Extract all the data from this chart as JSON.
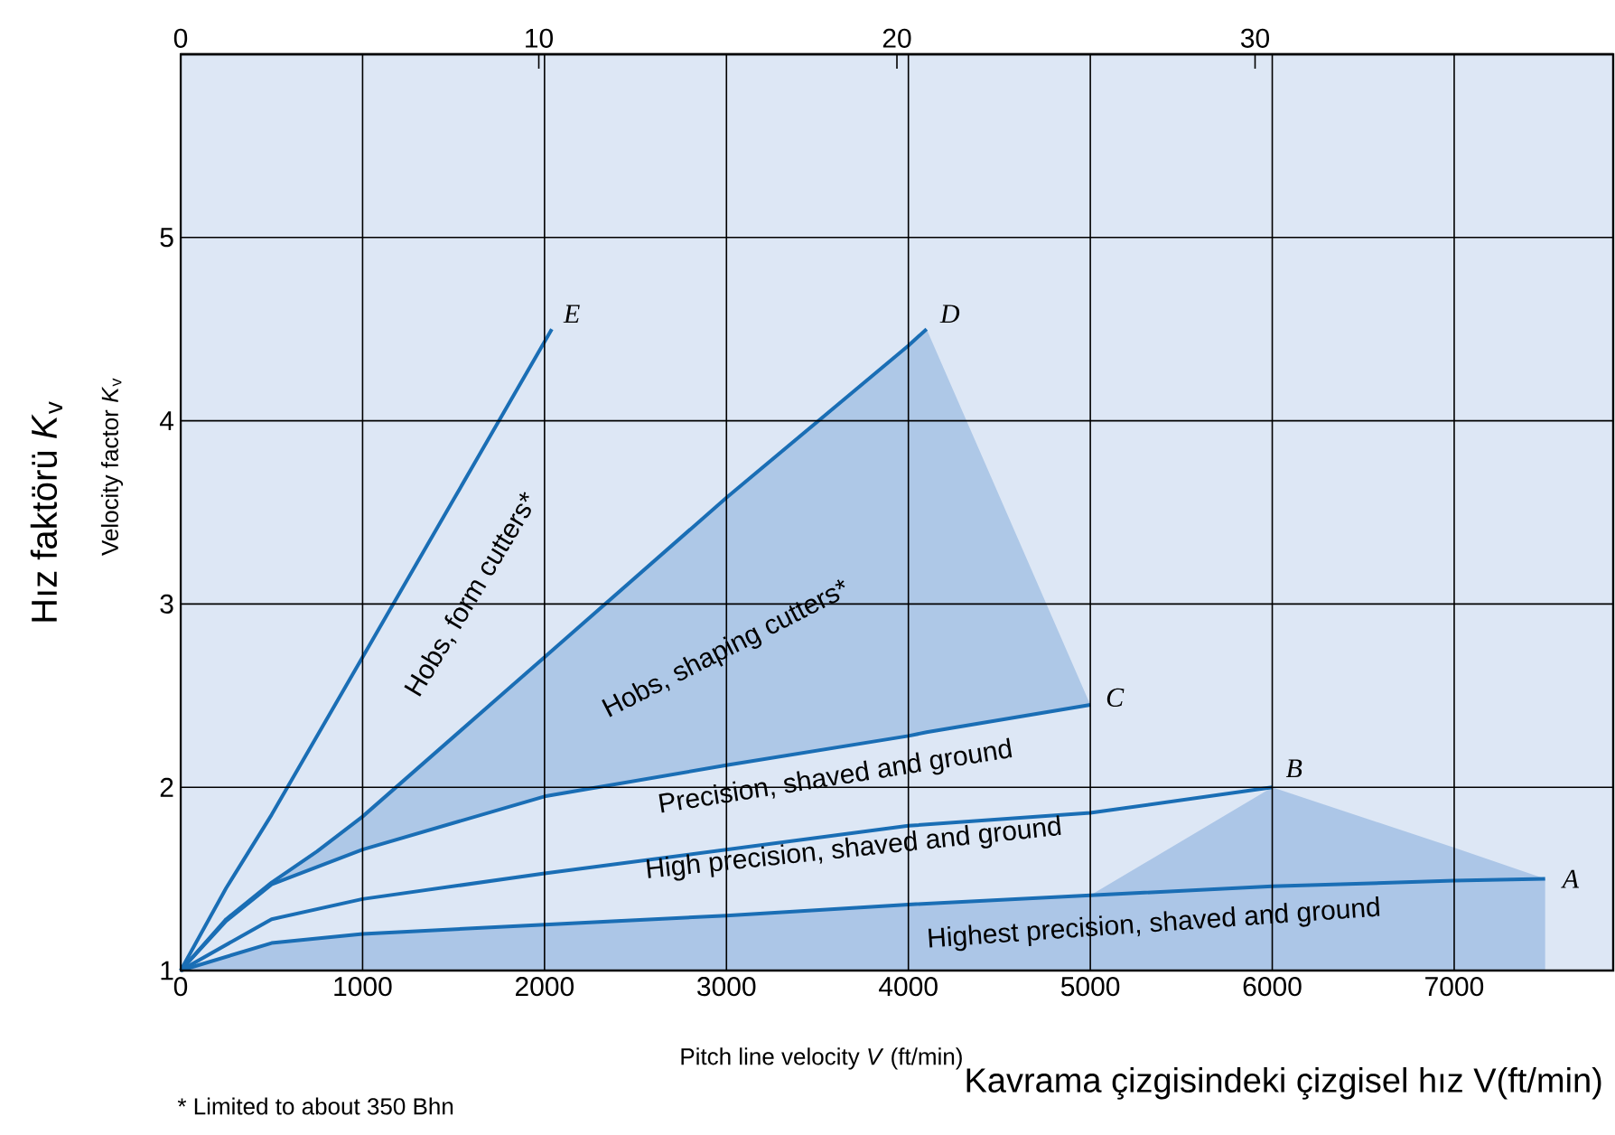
{
  "chart_data": {
    "type": "line",
    "xlabel": "Kavrama çizgisindeki çizgisel hız V(ft/min)",
    "ylabel": "Hız faktörü *K*$_{v}$",
    "xlim": [
      0,
      7874
    ],
    "xticks": [
      0,
      1000,
      2000,
      3000,
      4000,
      5000,
      6000,
      7000
    ],
    "ylim": [
      1,
      6
    ],
    "yticks": [
      1,
      2,
      3,
      4,
      5
    ],
    "x2lim": [
      0,
      40
    ],
    "x2ticks": [
      0,
      10,
      20,
      30
    ],
    "grid": true,
    "marker": "none",
    "line_style": "solid",
    "series": [
      {
        "color": "#1a6eb5",
        "x": [
          0,
          250,
          500,
          1000,
          1500,
          2040
        ],
        "values": [
          1,
          1.45,
          1.85,
          2.71,
          3.57,
          4.5
        ]
      },
      {
        "color": "#1a6eb5",
        "x": [
          0,
          250,
          500,
          750,
          1000,
          2000,
          3000,
          4000,
          4100
        ],
        "values": [
          1,
          1.28,
          1.48,
          1.65,
          1.84,
          2.71,
          3.58,
          4.41,
          4.5
        ]
      },
      {
        "color": "#1a6eb5",
        "x": [
          0,
          250,
          500,
          1000,
          2000,
          3000,
          4000,
          4100,
          5000
        ],
        "values": [
          1,
          1.27,
          1.47,
          1.66,
          1.95,
          2.12,
          2.28,
          2.3,
          2.45
        ],
        "lower": [
          1,
          1.27,
          1.47,
          1.66,
          1.95,
          2.12,
          2.28,
          2.3,
          2.45
        ],
        "upper": [
          1,
          1.28,
          1.48,
          1.84,
          2.71,
          3.58,
          4.41,
          4.5,
          2.45
        ]
      },
      {
        "color": "#1a6eb5",
        "x": [
          0,
          500,
          1000,
          2000,
          3000,
          4000,
          5000,
          6000
        ],
        "values": [
          1,
          1.28,
          1.39,
          1.53,
          1.66,
          1.79,
          1.86,
          2.0
        ]
      },
      {
        "color": "#1a6eb5",
        "x": [
          0,
          500,
          1000,
          2000,
          3000,
          4000,
          5000,
          6000,
          7000,
          7500
        ],
        "values": [
          1,
          1.15,
          1.2,
          1.25,
          1.3,
          1.36,
          1.41,
          1.46,
          1.49,
          1.5
        ],
        "lower": [
          1,
          1,
          1,
          1,
          1,
          1,
          1,
          1,
          1,
          1
        ],
        "upper": [
          1,
          1.15,
          1.2,
          1.25,
          1.3,
          1.36,
          1.41,
          2.0,
          1.67,
          1.5
        ]
      }
    ],
    "annotations": [
      {
        "text": "*E*",
        "x": 2040,
        "y": 4.5
      },
      {
        "text": "*D*",
        "x": 4100,
        "y": 4.5
      },
      {
        "text": "*C*",
        "x": 5000,
        "y": 2.45
      },
      {
        "text": "*B*",
        "x": 6000,
        "y": 2.0
      },
      {
        "text": "*A*",
        "x": 7500,
        "y": 1.5
      },
      "Hobs, form cutters*",
      "Hobs, shaping cutters*",
      "Precision, shaved and ground",
      "High precision, shaved and ground",
      "Highest precision, shaved and ground",
      "Pitch line velocity *V* (ft/min)",
      "Velocity factor *K*$_{v}$",
      "* Limited to about 350 Bhn"
    ]
  }
}
